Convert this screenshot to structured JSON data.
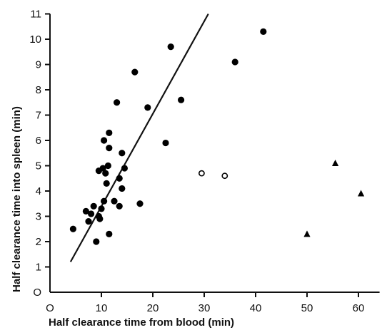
{
  "chart_data": {
    "type": "scatter",
    "title": "",
    "xlabel": "Half clearance time from blood (min)",
    "ylabel": "Half clearance time into spleen (min)",
    "xlim": [
      0,
      63
    ],
    "ylim": [
      0,
      11
    ],
    "xticks": [
      0,
      10,
      20,
      30,
      40,
      50,
      60
    ],
    "xtick_labels": [
      "O",
      "10",
      "20",
      "30",
      "40",
      "50",
      "60"
    ],
    "yticks": [
      0,
      1,
      2,
      3,
      4,
      5,
      6,
      7,
      8,
      9,
      10,
      11
    ],
    "ytick_labels": [
      "O",
      "1",
      "2",
      "3",
      "4",
      "5",
      "6",
      "7",
      "8",
      "9",
      "10",
      "11"
    ],
    "grid": false,
    "legend": "none",
    "color": "#000000",
    "series": [
      {
        "marker": "filled-circle",
        "points": [
          [
            4.5,
            2.5
          ],
          [
            7.0,
            3.2
          ],
          [
            7.5,
            2.8
          ],
          [
            8.0,
            3.1
          ],
          [
            8.5,
            3.4
          ],
          [
            9.0,
            2.0
          ],
          [
            9.5,
            3.0
          ],
          [
            9.7,
            2.9
          ],
          [
            9.5,
            4.8
          ],
          [
            10.0,
            3.3
          ],
          [
            10.5,
            3.6
          ],
          [
            10.5,
            6.0
          ],
          [
            10.8,
            4.7
          ],
          [
            11.0,
            4.3
          ],
          [
            11.3,
            5.0
          ],
          [
            11.5,
            5.7
          ],
          [
            11.5,
            6.3
          ],
          [
            11.5,
            2.3
          ],
          [
            10.3,
            4.9
          ],
          [
            12.5,
            3.6
          ],
          [
            13.0,
            7.5
          ],
          [
            13.5,
            4.5
          ],
          [
            13.5,
            3.4
          ],
          [
            14.0,
            4.1
          ],
          [
            14.0,
            5.5
          ],
          [
            14.5,
            4.9
          ],
          [
            16.5,
            8.7
          ],
          [
            17.5,
            3.5
          ],
          [
            19.0,
            7.3
          ],
          [
            22.5,
            5.9
          ],
          [
            23.5,
            9.7
          ],
          [
            25.5,
            7.6
          ],
          [
            36.0,
            9.1
          ],
          [
            41.5,
            10.3
          ]
        ]
      },
      {
        "marker": "open-circle",
        "points": [
          [
            29.5,
            4.7
          ],
          [
            34.0,
            4.6
          ]
        ]
      },
      {
        "marker": "filled-triangle",
        "points": [
          [
            50.0,
            2.3
          ],
          [
            55.5,
            5.1
          ],
          [
            60.5,
            3.9
          ]
        ]
      }
    ],
    "regression_line": {
      "x": [
        4.0,
        30.8
      ],
      "y": [
        1.2,
        11.0
      ]
    }
  }
}
